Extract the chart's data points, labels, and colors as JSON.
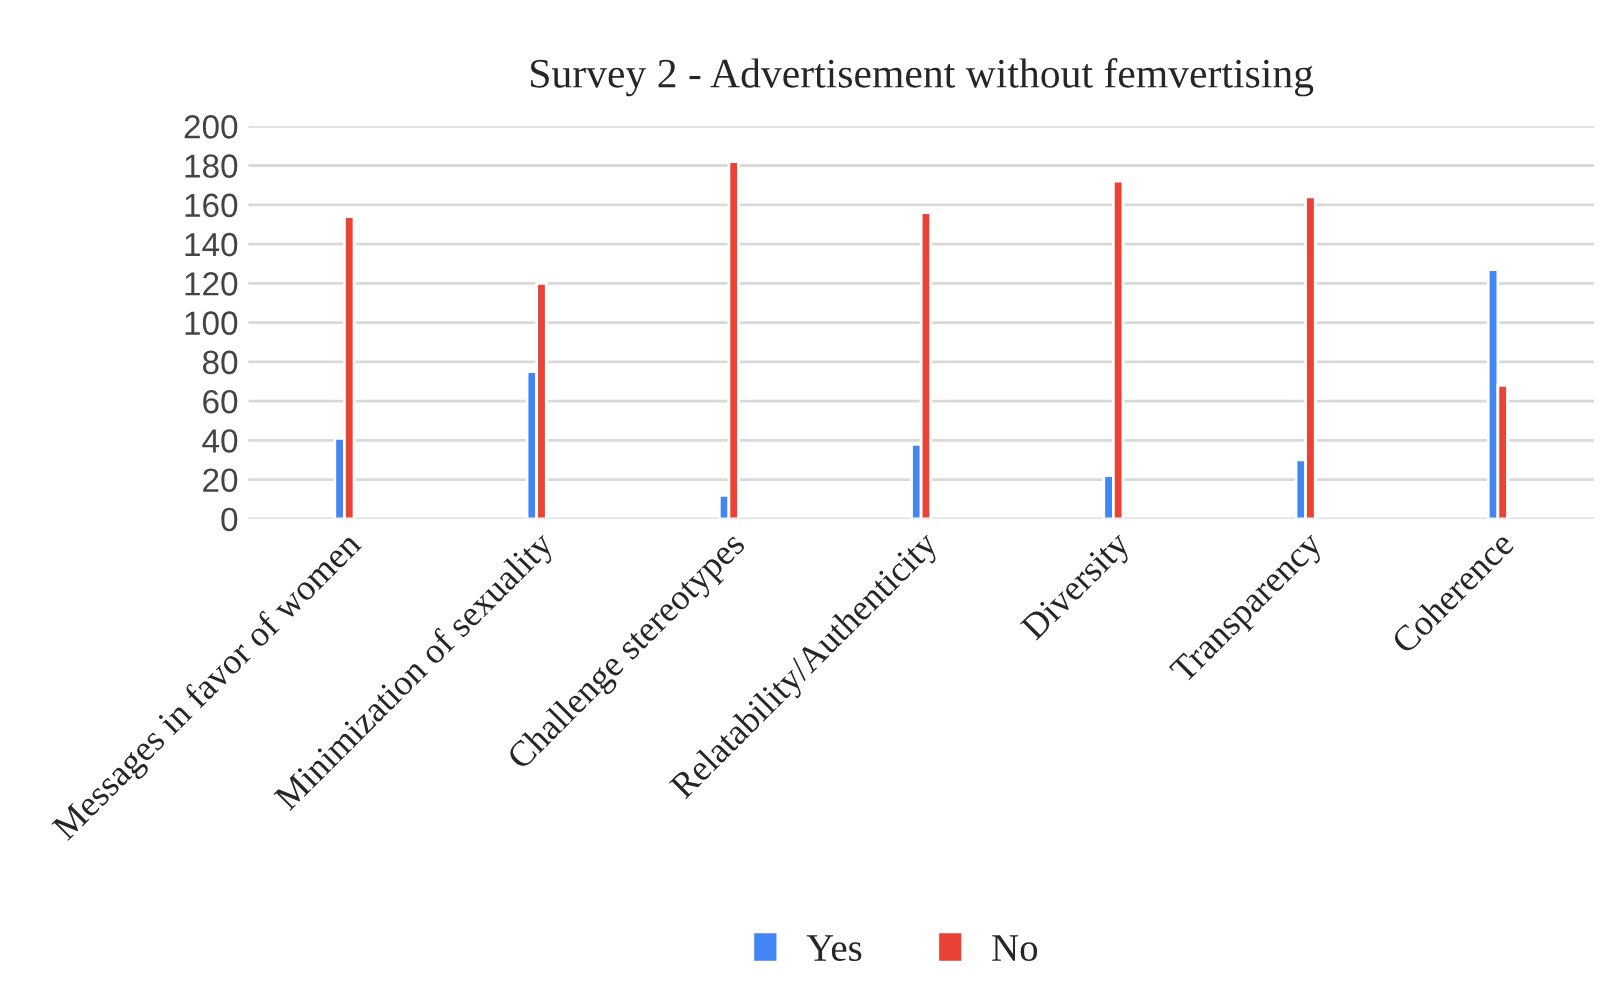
{
  "chart_data": {
    "type": "bar",
    "title": "Survey 2 - Advertisement without femvertising",
    "categories": [
      "Messages in favor of women",
      "Minimization of sexuality",
      "Challenge stereotypes",
      "Relatability/Authenticity",
      "Diversity",
      "Transparency",
      "Coherence"
    ],
    "series": [
      {
        "name": "Yes",
        "color": "#4285f4",
        "values": [
          41,
          75,
          12,
          38,
          22,
          30,
          127
        ]
      },
      {
        "name": "No",
        "color": "#ea4335",
        "values": [
          154,
          120,
          182,
          156,
          172,
          164,
          68
        ]
      }
    ],
    "ylim": [
      0,
      200
    ],
    "yticks": [
      0,
      20,
      40,
      60,
      80,
      100,
      120,
      140,
      160,
      180,
      200
    ],
    "grid": "y",
    "legend": "bottom"
  }
}
